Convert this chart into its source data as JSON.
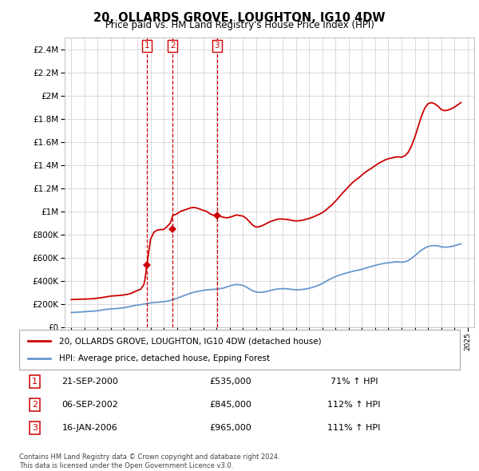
{
  "title": "20, OLLARDS GROVE, LOUGHTON, IG10 4DW",
  "subtitle": "Price paid vs. HM Land Registry's House Price Index (HPI)",
  "legend_label_red": "20, OLLARDS GROVE, LOUGHTON, IG10 4DW (detached house)",
  "legend_label_blue": "HPI: Average price, detached house, Epping Forest",
  "footer1": "Contains HM Land Registry data © Crown copyright and database right 2024.",
  "footer2": "This data is licensed under the Open Government Licence v3.0.",
  "transactions": [
    {
      "label": "1",
      "date": "21-SEP-2000",
      "price": 535000,
      "hpi_pct": "71% ↑ HPI",
      "x": 2000.72
    },
    {
      "label": "2",
      "date": "06-SEP-2002",
      "price": 845000,
      "hpi_pct": "112% ↑ HPI",
      "x": 2002.68
    },
    {
      "label": "3",
      "date": "16-JAN-2006",
      "price": 965000,
      "hpi_pct": "111% ↑ HPI",
      "x": 2006.04
    }
  ],
  "red_color": "#cc0000",
  "blue_color": "#6699cc",
  "grid_color": "#cccccc",
  "ylim": [
    0,
    2500000
  ],
  "xlim_start": 1994.5,
  "xlim_end": 2025.5,
  "hpi_data": {
    "years": [
      1995,
      1995.25,
      1995.5,
      1995.75,
      1996,
      1996.25,
      1996.5,
      1996.75,
      1997,
      1997.25,
      1997.5,
      1997.75,
      1998,
      1998.25,
      1998.5,
      1998.75,
      1999,
      1999.25,
      1999.5,
      1999.75,
      2000,
      2000.25,
      2000.5,
      2000.75,
      2001,
      2001.25,
      2001.5,
      2001.75,
      2002,
      2002.25,
      2002.5,
      2002.75,
      2003,
      2003.25,
      2003.5,
      2003.75,
      2004,
      2004.25,
      2004.5,
      2004.75,
      2005,
      2005.25,
      2005.5,
      2005.75,
      2006,
      2006.25,
      2006.5,
      2006.75,
      2007,
      2007.25,
      2007.5,
      2007.75,
      2008,
      2008.25,
      2008.5,
      2008.75,
      2009,
      2009.25,
      2009.5,
      2009.75,
      2010,
      2010.25,
      2010.5,
      2010.75,
      2011,
      2011.25,
      2011.5,
      2011.75,
      2012,
      2012.25,
      2012.5,
      2012.75,
      2013,
      2013.25,
      2013.5,
      2013.75,
      2014,
      2014.25,
      2014.5,
      2014.75,
      2015,
      2015.25,
      2015.5,
      2015.75,
      2016,
      2016.25,
      2016.5,
      2016.75,
      2017,
      2017.25,
      2017.5,
      2017.75,
      2018,
      2018.25,
      2018.5,
      2018.75,
      2019,
      2019.25,
      2019.5,
      2019.75,
      2020,
      2020.25,
      2020.5,
      2020.75,
      2021,
      2021.25,
      2021.5,
      2021.75,
      2022,
      2022.25,
      2022.5,
      2022.75,
      2023,
      2023.25,
      2023.5,
      2023.75,
      2024,
      2024.25,
      2024.5
    ],
    "values": [
      128000,
      129000,
      131000,
      133000,
      135000,
      137000,
      139000,
      141000,
      144000,
      148000,
      153000,
      156000,
      159000,
      161000,
      163000,
      166000,
      170000,
      175000,
      181000,
      187000,
      192000,
      196000,
      201000,
      206000,
      211000,
      214000,
      217000,
      219000,
      221000,
      226000,
      232000,
      241000,
      251000,
      262000,
      272000,
      283000,
      294000,
      302000,
      309000,
      314000,
      319000,
      323000,
      326000,
      328000,
      330000,
      334000,
      338000,
      348000,
      358000,
      365000,
      370000,
      368000,
      362000,
      348000,
      330000,
      315000,
      305000,
      302000,
      304000,
      309000,
      316000,
      323000,
      329000,
      332000,
      334000,
      333000,
      330000,
      327000,
      324000,
      325000,
      327000,
      331000,
      337000,
      344000,
      354000,
      365000,
      378000,
      395000,
      411000,
      425000,
      438000,
      449000,
      458000,
      466000,
      474000,
      482000,
      489000,
      495000,
      501000,
      510000,
      519000,
      527000,
      535000,
      542000,
      548000,
      553000,
      557000,
      561000,
      564000,
      566000,
      562000,
      566000,
      576000,
      595000,
      618000,
      643000,
      666000,
      684000,
      697000,
      704000,
      706000,
      703000,
      695000,
      692000,
      693000,
      697000,
      704000,
      712000,
      720000
    ]
  },
  "red_data": {
    "years": [
      1995,
      1995.25,
      1995.5,
      1995.75,
      1996,
      1996.25,
      1996.5,
      1996.75,
      1997,
      1997.25,
      1997.5,
      1997.75,
      1998,
      1998.25,
      1998.5,
      1998.75,
      1999,
      1999.25,
      1999.5,
      1999.75,
      2000,
      2000.25,
      2000.5,
      2000.6,
      2000.72,
      2001,
      2001.25,
      2001.5,
      2001.75,
      2002,
      2002.25,
      2002.5,
      2002.68,
      2003,
      2003.25,
      2003.5,
      2003.75,
      2004,
      2004.25,
      2004.5,
      2004.75,
      2005,
      2005.25,
      2005.5,
      2005.75,
      2006,
      2006.04,
      2006.25,
      2006.5,
      2006.75,
      2007,
      2007.25,
      2007.5,
      2007.75,
      2008,
      2008.25,
      2008.5,
      2008.75,
      2009,
      2009.25,
      2009.5,
      2009.75,
      2010,
      2010.25,
      2010.5,
      2010.75,
      2011,
      2011.25,
      2011.5,
      2011.75,
      2012,
      2012.25,
      2012.5,
      2012.75,
      2013,
      2013.25,
      2013.5,
      2013.75,
      2014,
      2014.25,
      2014.5,
      2014.75,
      2015,
      2015.25,
      2015.5,
      2015.75,
      2016,
      2016.25,
      2016.5,
      2016.75,
      2017,
      2017.25,
      2017.5,
      2017.75,
      2018,
      2018.25,
      2018.5,
      2018.75,
      2019,
      2019.25,
      2019.5,
      2019.75,
      2020,
      2020.25,
      2020.5,
      2020.75,
      2021,
      2021.25,
      2021.5,
      2021.75,
      2022,
      2022.25,
      2022.5,
      2022.75,
      2023,
      2023.25,
      2023.5,
      2023.75,
      2024,
      2024.25,
      2024.5
    ],
    "values": [
      240000,
      241000,
      242000,
      243000,
      244000,
      245000,
      246000,
      248000,
      252000,
      256000,
      260000,
      265000,
      270000,
      272000,
      274000,
      276000,
      280000,
      285000,
      292000,
      305000,
      318000,
      328000,
      370000,
      430000,
      535000,
      760000,
      820000,
      840000,
      843000,
      845000,
      870000,
      900000,
      965000,
      980000,
      1000000,
      1010000,
      1020000,
      1030000,
      1035000,
      1030000,
      1020000,
      1010000,
      1000000,
      980000,
      968000,
      962000,
      965000,
      960000,
      950000,
      945000,
      950000,
      960000,
      970000,
      965000,
      960000,
      940000,
      910000,
      880000,
      865000,
      870000,
      880000,
      895000,
      910000,
      920000,
      930000,
      935000,
      935000,
      932000,
      928000,
      922000,
      918000,
      920000,
      925000,
      932000,
      940000,
      950000,
      962000,
      975000,
      990000,
      1010000,
      1035000,
      1060000,
      1090000,
      1120000,
      1155000,
      1185000,
      1215000,
      1245000,
      1270000,
      1290000,
      1315000,
      1338000,
      1358000,
      1375000,
      1395000,
      1415000,
      1430000,
      1445000,
      1455000,
      1462000,
      1468000,
      1472000,
      1468000,
      1480000,
      1510000,
      1565000,
      1640000,
      1730000,
      1820000,
      1890000,
      1930000,
      1940000,
      1930000,
      1910000,
      1880000,
      1870000,
      1875000,
      1885000,
      1900000,
      1920000,
      1940000
    ]
  }
}
